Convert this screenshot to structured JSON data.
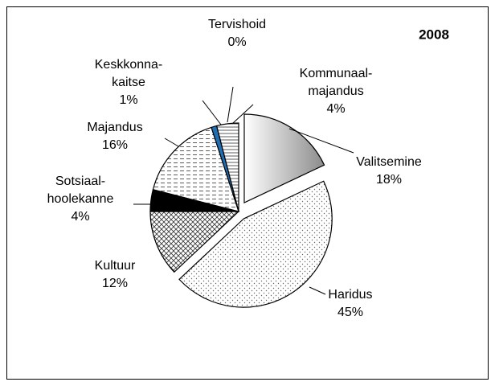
{
  "chart_data": {
    "type": "pie",
    "title": "2008",
    "categories": [
      "Valitsemine",
      "Haridus",
      "Kultuur",
      "Sotsiaal-\nhoolekanne",
      "Majandus",
      "Keskkonna-\nkaitse",
      "Tervishoid",
      "Kommunaal-\nmajandus"
    ],
    "values": [
      18,
      45,
      12,
      4,
      16,
      1,
      0,
      4
    ],
    "value_labels": [
      "18%",
      "45%",
      "12%",
      "4%",
      "16%",
      "1%",
      "0%",
      "4%"
    ],
    "colors": [
      "#b0b0b0",
      "#ffffff",
      "#ffffff",
      "#000000",
      "#ffffff",
      "#1f6fb5",
      "#ffffff",
      "#ffffff"
    ]
  }
}
